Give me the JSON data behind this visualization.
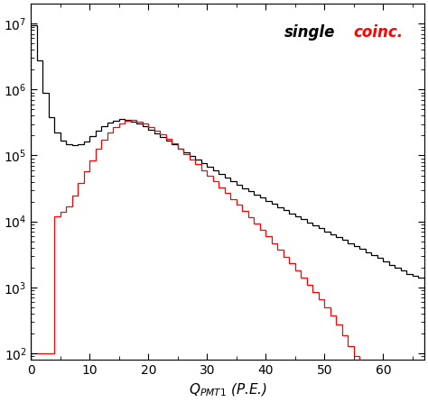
{
  "title": "",
  "xlabel": "Q_{PMT1} (P.E.)",
  "ylabel": "",
  "xlim": [
    0,
    67
  ],
  "ylim": [
    80,
    20000000.0
  ],
  "legend_single": "single",
  "legend_coinc": "coinc.",
  "single_color": "#000000",
  "coinc_color": "#ff0000",
  "background_color": "#ffffff",
  "single_counts": [
    9500000,
    2800000,
    900000,
    380000,
    220000,
    170000,
    150000,
    145000,
    148000,
    162000,
    195000,
    235000,
    280000,
    315000,
    340000,
    355000,
    350000,
    330000,
    305000,
    275000,
    245000,
    215000,
    190000,
    167000,
    147000,
    128000,
    112000,
    98000,
    86000,
    76000,
    67000,
    59000,
    52000,
    46000,
    41000,
    36000,
    32000,
    28500,
    25500,
    22800,
    20400,
    18300,
    16500,
    14800,
    13300,
    12000,
    10800,
    9700,
    8800,
    7900,
    7100,
    6400,
    5800,
    5200,
    4700,
    4200,
    3800,
    3400,
    3100,
    2800,
    2500,
    2200,
    2000,
    1800,
    1600,
    1500,
    1400
  ],
  "coinc_counts": [
    100,
    100,
    100,
    100,
    12000,
    14000,
    17000,
    25000,
    38000,
    58000,
    85000,
    125000,
    175000,
    225000,
    270000,
    310000,
    335000,
    345000,
    330000,
    305000,
    272000,
    240000,
    208000,
    178000,
    151000,
    127000,
    106000,
    88000,
    73000,
    60000,
    49500,
    40500,
    33000,
    27000,
    22000,
    17800,
    14400,
    11600,
    9300,
    7400,
    5900,
    4700,
    3700,
    2900,
    2300,
    1800,
    1400,
    1100,
    850,
    650,
    490,
    370,
    270,
    190,
    130,
    90,
    60,
    40,
    25,
    15,
    10,
    0,
    0,
    0,
    0,
    0,
    0
  ]
}
